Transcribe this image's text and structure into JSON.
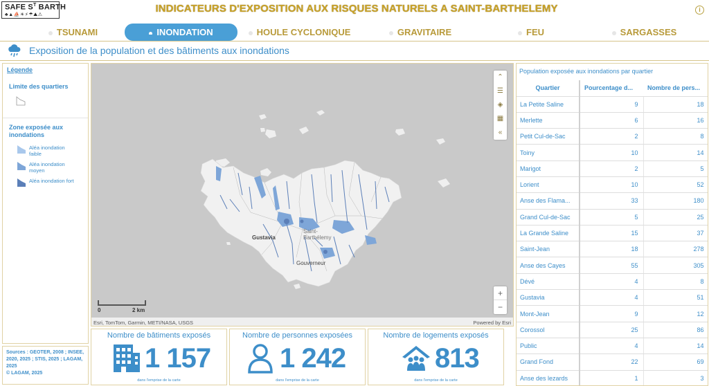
{
  "app": {
    "logo_line1": "SAFE S",
    "logo_sup": "T",
    "logo_line1b": " BARTH",
    "logo_line2": "♣▲⛵☀⚡☂⛰⚠",
    "title": "INDICATEURS D'EXPOSITION AUX RISQUES NATURELS A SAINT-BARTHELEMY",
    "info_icon": "i"
  },
  "tabs": [
    {
      "label": "TSUNAMI",
      "active": false
    },
    {
      "label": "INONDATION",
      "active": true
    },
    {
      "label": "HOULE CYCLONIQUE",
      "active": false
    },
    {
      "label": "GRAVITAIRE",
      "active": false
    },
    {
      "label": "FEU",
      "active": false
    },
    {
      "label": "SARGASSES",
      "active": false
    }
  ],
  "page": {
    "title": "Exposition de la population et des bâtiments aux inondations",
    "icon": "rain-cloud-icon"
  },
  "legend": {
    "title": "Légende",
    "limit_title": "Limite des quartiers",
    "zone_title": "Zone exposée aux inondations",
    "items": [
      {
        "label": "Aléa inondation faible",
        "color": "#a9c8ec"
      },
      {
        "label": "Aléa inondation moyen",
        "color": "#7ea6d8"
      },
      {
        "label": "Aléa inondation fort",
        "color": "#5b7fb8"
      }
    ]
  },
  "sources": {
    "text": "Sources : GEOTER, 2008 ; INSEE, 2020, 2025 ; STIS, 2025 ; LAGAM, 2025",
    "copyright": "© LAGAM, 2025"
  },
  "map": {
    "labels": {
      "gustavia": "Gustavia",
      "saint_barth_1": "Saint-",
      "saint_barth_2": "Barthélemy",
      "gouverneur": "Gouverneur"
    },
    "scale_start": "0",
    "scale_end": "2 km",
    "attribution_left": "Esri, TomTom, Garmin, METI/NASA, USGS",
    "attribution_right": "Powered by Esri",
    "tools": [
      "collapse-icon",
      "list-icon",
      "layers-icon",
      "qr-icon",
      "chevron-left-icon"
    ],
    "zoom_in": "+",
    "zoom_out": "−"
  },
  "kpis": [
    {
      "title": "Nombre de bâtiments exposés",
      "value": "1 157",
      "note": "dans l'emprise de la carte",
      "icon": "building-icon"
    },
    {
      "title": "Nombre de personnes exposées",
      "value": "1 242",
      "note": "dans l'emprise de la carte",
      "icon": "person-icon"
    },
    {
      "title": "Nombre de logements exposés",
      "value": "813",
      "note": "dans l'emprise de la carte",
      "icon": "house-family-icon"
    }
  ],
  "table": {
    "title": "Population exposée aux inondations par quartier",
    "headers": [
      "Quartier",
      "Pourcentage d...",
      "Nombre de pers..."
    ],
    "rows": [
      [
        "La Petite Saline",
        "9",
        "18"
      ],
      [
        "Merlette",
        "6",
        "16"
      ],
      [
        "Petit Cul-de-Sac",
        "2",
        "8"
      ],
      [
        "Toiny",
        "10",
        "14"
      ],
      [
        "Marigot",
        "2",
        "5"
      ],
      [
        "Lorient",
        "10",
        "52"
      ],
      [
        "Anse des Flama...",
        "33",
        "180"
      ],
      [
        "Grand Cul-de-Sac",
        "5",
        "25"
      ],
      [
        "La Grande Saline",
        "15",
        "37"
      ],
      [
        "Saint-Jean",
        "18",
        "278"
      ],
      [
        "Anse des Cayes",
        "55",
        "305"
      ],
      [
        "Dévé",
        "4",
        "8"
      ],
      [
        "Gustavia",
        "4",
        "51"
      ],
      [
        "Mont-Jean",
        "9",
        "12"
      ],
      [
        "Corossol",
        "25",
        "86"
      ],
      [
        "Public",
        "4",
        "14"
      ],
      [
        "Grand Fond",
        "22",
        "69"
      ],
      [
        "Anse des lezards",
        "1",
        "3"
      ]
    ]
  }
}
